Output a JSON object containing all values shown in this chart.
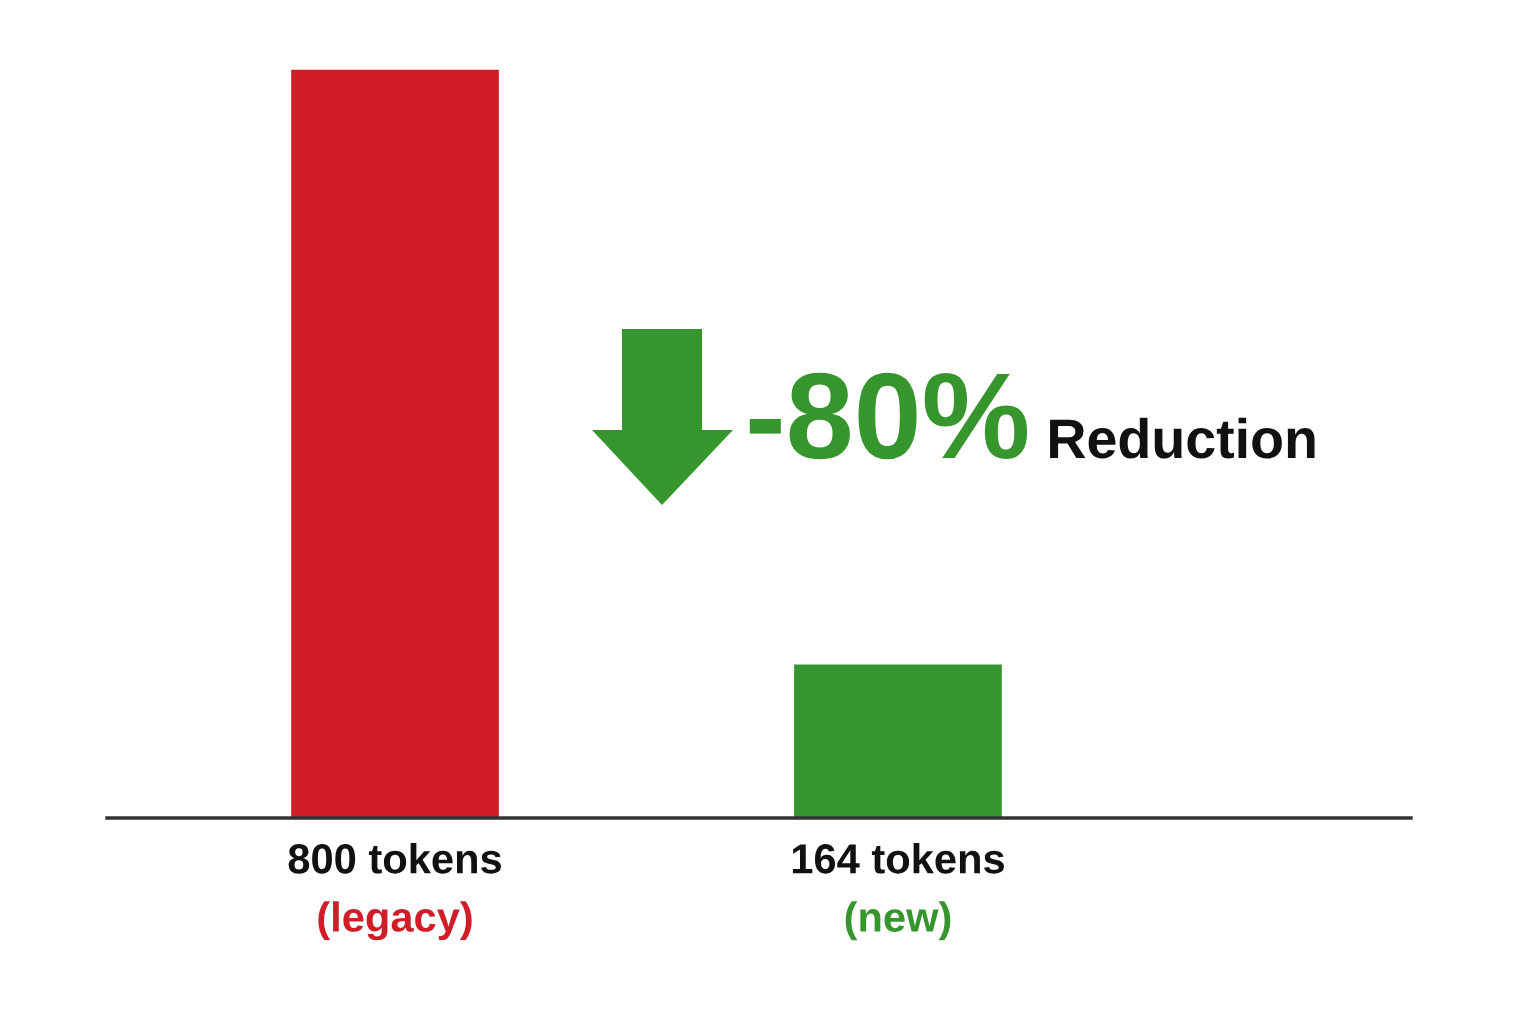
{
  "chart_data": {
    "type": "bar",
    "categories": [
      "(legacy)",
      "(new)"
    ],
    "values": [
      800,
      164
    ],
    "colors": [
      "#d01d28",
      "#36952d"
    ],
    "value_labels": [
      "800 tokens",
      "164 tokens"
    ],
    "annotations": [
      "-80%",
      "Reduction"
    ],
    "tick_labels": "x"
  }
}
